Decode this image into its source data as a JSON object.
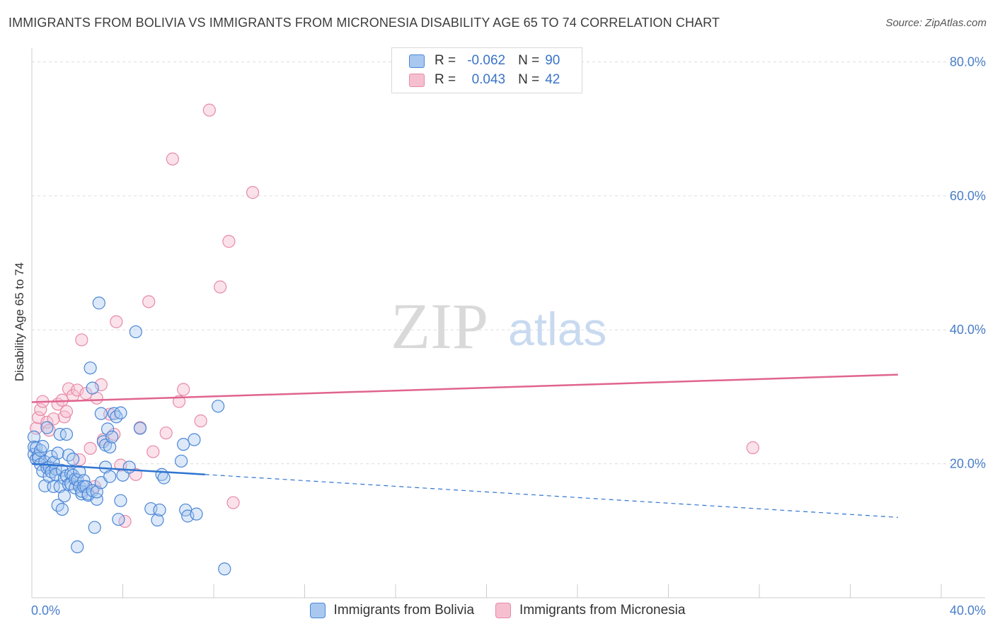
{
  "title": "IMMIGRANTS FROM BOLIVIA VS IMMIGRANTS FROM MICRONESIA DISABILITY AGE 65 TO 74 CORRELATION CHART",
  "source": "Source: ZipAtlas.com",
  "watermark": {
    "zip": "ZIP",
    "atlas": "atlas"
  },
  "legend": {
    "rows": [
      {
        "r_label": "R =",
        "r_value": "-0.062",
        "n_label": "N =",
        "n_value": "90"
      },
      {
        "r_label": "R =",
        "r_value": "0.043",
        "n_label": "N =",
        "n_value": "42"
      }
    ]
  },
  "colors": {
    "bolivia_fill": "#a9c8f0",
    "bolivia_stroke": "#4a86d6",
    "bolivia_line": "#2f74d0",
    "micronesia_fill": "#f6bfd0",
    "micronesia_stroke": "#e78aa7",
    "micronesia_line": "#e0648f",
    "tick": "#4a7ec8",
    "grid": "#dddddd"
  },
  "chart_data": {
    "type": "scatter",
    "title": "IMMIGRANTS FROM BOLIVIA VS IMMIGRANTS FROM MICRONESIA DISABILITY AGE 65 TO 74 CORRELATION CHART",
    "xlabel": "",
    "ylabel": "Disability Age 65 to 74",
    "xlim": [
      0,
      42
    ],
    "ylim": [
      0,
      81
    ],
    "x_tick_labels": [
      "0.0%",
      "40.0%"
    ],
    "y_ticks": [
      20,
      40,
      60,
      80
    ],
    "y_tick_labels": [
      "20.0%",
      "40.0%",
      "60.0%",
      "80.0%"
    ],
    "grid": true,
    "legend_position": "top-center",
    "series": [
      {
        "name": "Immigrants from Bolivia",
        "r": -0.062,
        "n": 90,
        "trend": {
          "x0": 0,
          "y0": 20.0,
          "x1": 40,
          "y1": 12.0,
          "solid_until_x": 8
        },
        "points": [
          [
            0.1,
            24.0
          ],
          [
            0.1,
            22.5
          ],
          [
            0.1,
            21.4
          ],
          [
            0.2,
            20.7
          ],
          [
            0.2,
            22.4
          ],
          [
            0.3,
            21.2
          ],
          [
            0.3,
            20.8
          ],
          [
            0.4,
            22.0
          ],
          [
            0.4,
            19.9
          ],
          [
            0.5,
            22.6
          ],
          [
            0.5,
            18.9
          ],
          [
            0.6,
            20.3
          ],
          [
            0.6,
            16.7
          ],
          [
            0.7,
            19.4
          ],
          [
            0.7,
            25.4
          ],
          [
            0.8,
            19.5
          ],
          [
            0.8,
            18.1
          ],
          [
            0.9,
            21.1
          ],
          [
            0.9,
            18.8
          ],
          [
            1.0,
            20.2
          ],
          [
            1.0,
            16.6
          ],
          [
            1.1,
            19.2
          ],
          [
            1.1,
            18.4
          ],
          [
            1.2,
            13.8
          ],
          [
            1.2,
            21.6
          ],
          [
            1.3,
            24.4
          ],
          [
            1.3,
            16.6
          ],
          [
            1.4,
            19.0
          ],
          [
            1.4,
            13.2
          ],
          [
            1.5,
            17.8
          ],
          [
            1.5,
            15.2
          ],
          [
            1.6,
            24.4
          ],
          [
            1.6,
            18.2
          ],
          [
            1.7,
            16.9
          ],
          [
            1.7,
            21.3
          ],
          [
            1.8,
            18.5
          ],
          [
            1.8,
            17.0
          ],
          [
            1.9,
            18.3
          ],
          [
            1.9,
            20.7
          ],
          [
            2.0,
            17.7
          ],
          [
            2.0,
            16.4
          ],
          [
            2.1,
            17.6
          ],
          [
            2.1,
            7.6
          ],
          [
            2.2,
            18.8
          ],
          [
            2.2,
            16.6
          ],
          [
            2.3,
            15.5
          ],
          [
            2.3,
            15.9
          ],
          [
            2.4,
            17.5
          ],
          [
            2.4,
            16.6
          ],
          [
            2.5,
            16.6
          ],
          [
            2.6,
            15.3
          ],
          [
            2.6,
            15.5
          ],
          [
            2.7,
            34.3
          ],
          [
            2.8,
            31.3
          ],
          [
            2.8,
            16.0
          ],
          [
            2.9,
            10.5
          ],
          [
            3.0,
            14.7
          ],
          [
            3.0,
            15.8
          ],
          [
            3.1,
            44.0
          ],
          [
            3.2,
            27.5
          ],
          [
            3.2,
            17.2
          ],
          [
            3.3,
            23.3
          ],
          [
            3.4,
            19.5
          ],
          [
            3.4,
            22.8
          ],
          [
            3.5,
            25.2
          ],
          [
            3.6,
            18.1
          ],
          [
            3.6,
            22.5
          ],
          [
            3.7,
            24.0
          ],
          [
            3.8,
            27.5
          ],
          [
            3.9,
            27.0
          ],
          [
            4.0,
            11.7
          ],
          [
            4.1,
            14.5
          ],
          [
            4.1,
            27.6
          ],
          [
            4.2,
            18.3
          ],
          [
            4.5,
            19.5
          ],
          [
            4.8,
            39.7
          ],
          [
            5.0,
            25.3
          ],
          [
            5.5,
            13.3
          ],
          [
            5.8,
            11.6
          ],
          [
            5.9,
            13.1
          ],
          [
            6.0,
            18.4
          ],
          [
            6.1,
            17.9
          ],
          [
            6.9,
            20.4
          ],
          [
            7.0,
            22.9
          ],
          [
            7.1,
            13.1
          ],
          [
            7.2,
            12.2
          ],
          [
            7.5,
            23.6
          ],
          [
            7.6,
            12.5
          ],
          [
            8.6,
            28.6
          ],
          [
            8.9,
            4.3
          ]
        ]
      },
      {
        "name": "Immigrants from Micronesia",
        "r": 0.043,
        "n": 42,
        "trend": {
          "x0": 0,
          "y0": 29.2,
          "x1": 40,
          "y1": 33.3
        },
        "points": [
          [
            0.2,
            25.3
          ],
          [
            0.3,
            26.9
          ],
          [
            0.4,
            28.1
          ],
          [
            0.5,
            29.3
          ],
          [
            0.7,
            26.2
          ],
          [
            0.8,
            25.0
          ],
          [
            1.0,
            26.7
          ],
          [
            1.2,
            28.9
          ],
          [
            1.4,
            29.5
          ],
          [
            1.5,
            27.0
          ],
          [
            1.6,
            27.8
          ],
          [
            1.7,
            31.2
          ],
          [
            1.9,
            30.2
          ],
          [
            2.1,
            31.0
          ],
          [
            2.2,
            20.6
          ],
          [
            2.3,
            38.5
          ],
          [
            2.5,
            30.5
          ],
          [
            2.7,
            22.3
          ],
          [
            2.9,
            16.6
          ],
          [
            3.0,
            29.8
          ],
          [
            3.2,
            31.8
          ],
          [
            3.3,
            23.6
          ],
          [
            3.6,
            27.4
          ],
          [
            3.8,
            24.4
          ],
          [
            3.9,
            41.2
          ],
          [
            4.1,
            19.8
          ],
          [
            4.3,
            11.4
          ],
          [
            4.8,
            18.4
          ],
          [
            5.0,
            25.4
          ],
          [
            5.4,
            44.2
          ],
          [
            5.6,
            21.8
          ],
          [
            6.2,
            24.6
          ],
          [
            6.5,
            65.5
          ],
          [
            6.8,
            29.3
          ],
          [
            7.0,
            31.1
          ],
          [
            7.8,
            26.4
          ],
          [
            8.2,
            72.8
          ],
          [
            8.7,
            46.4
          ],
          [
            9.1,
            53.2
          ],
          [
            9.3,
            14.2
          ],
          [
            10.2,
            60.5
          ],
          [
            33.3,
            22.4
          ]
        ]
      }
    ]
  },
  "bottom_legend": [
    "Immigrants from Bolivia",
    "Immigrants from Micronesia"
  ]
}
